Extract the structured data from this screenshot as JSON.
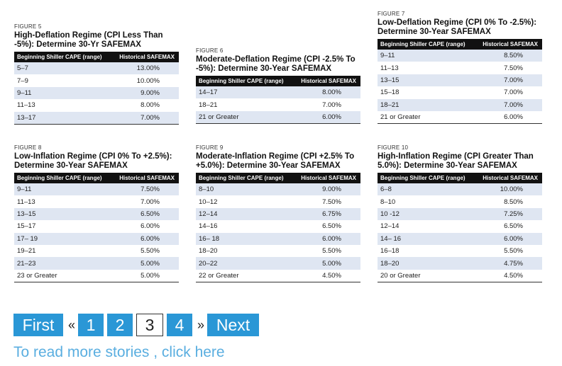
{
  "table_header": {
    "col1": "Beginning Shiller CAPE (range)",
    "col2": "Historical SAFEMAX"
  },
  "figures": [
    {
      "label": "FIGURE 5",
      "title": "High-Deflation Regime (CPI Less Than -5%): Determine 30-Yr SAFEMAX",
      "rows": [
        [
          "5–7",
          "13.00%"
        ],
        [
          "7–9",
          "10.00%"
        ],
        [
          "9–11",
          "9.00%"
        ],
        [
          "11–13",
          "8.00%"
        ],
        [
          "13–17",
          "7.00%"
        ]
      ]
    },
    {
      "label": "FIGURE 6",
      "title": "Moderate-Deflation Regime (CPI -2.5% To -5%): Determine 30-Year SAFEMAX",
      "rows": [
        [
          "14–17",
          "8.00%"
        ],
        [
          "18–21",
          "7.00%"
        ],
        [
          "21 or Greater",
          "6.00%"
        ]
      ]
    },
    {
      "label": "FIGURE 7",
      "title": "Low-Deflation Regime (CPI 0% To -2.5%): Determine 30-Year SAFEMAX",
      "rows": [
        [
          "9–11",
          "8.50%"
        ],
        [
          "11–13",
          "7.50%"
        ],
        [
          "13–15",
          "7.00%"
        ],
        [
          "15–18",
          "7.00%"
        ],
        [
          "18–21",
          "7.00%"
        ],
        [
          "21 or Greater",
          "6.00%"
        ]
      ]
    },
    {
      "label": "FIGURE 8",
      "title": "Low-Inflation Regime (CPI 0% To +2.5%): Determine 30-Year SAFEMAX",
      "rows": [
        [
          "9–11",
          "7.50%"
        ],
        [
          "11–13",
          "7.00%"
        ],
        [
          "13–15",
          "6.50%"
        ],
        [
          "15–17",
          "6.00%"
        ],
        [
          "17– 19",
          "6.00%"
        ],
        [
          "19–21",
          "5.50%"
        ],
        [
          "21–23",
          "5.00%"
        ],
        [
          "23 or Greater",
          "5.00%"
        ]
      ]
    },
    {
      "label": "FIGURE 9",
      "title": "Moderate-Inflation Regime (CPI +2.5% To +5.0%): Determine 30-Year SAFEMAX",
      "rows": [
        [
          "8–10",
          "9.00%"
        ],
        [
          "10–12",
          "7.50%"
        ],
        [
          "12–14",
          "6.75%"
        ],
        [
          "14–16",
          "6.50%"
        ],
        [
          "16– 18",
          "6.00%"
        ],
        [
          "18–20",
          "5.50%"
        ],
        [
          "20–22",
          "5.00%"
        ],
        [
          "22 or Greater",
          "4.50%"
        ]
      ]
    },
    {
      "label": "FIGURE 10",
      "title": "High-Inflation Regime (CPI Greater Than 5.0%): Determine 30-Year SAFEMAX",
      "rows": [
        [
          "6–8",
          "10.00%"
        ],
        [
          "8–10",
          "8.50%"
        ],
        [
          "10 -12",
          "7.25%"
        ],
        [
          "12–14",
          "6.50%"
        ],
        [
          "14– 16",
          "6.00%"
        ],
        [
          "16–18",
          "5.50%"
        ],
        [
          "18–20",
          "4.75%"
        ],
        [
          "20 or Greater",
          "4.50%"
        ]
      ]
    }
  ],
  "pagination": {
    "first": "First",
    "prev": "«",
    "pages": [
      "1",
      "2",
      "3",
      "4"
    ],
    "current": "3",
    "next_arrow": "»",
    "next": "Next"
  },
  "more_link": "To read more stories , click here",
  "colors": {
    "button_blue": "#2a97d6",
    "row_stripe": "#dfe6f2",
    "link": "#5aaee0"
  }
}
